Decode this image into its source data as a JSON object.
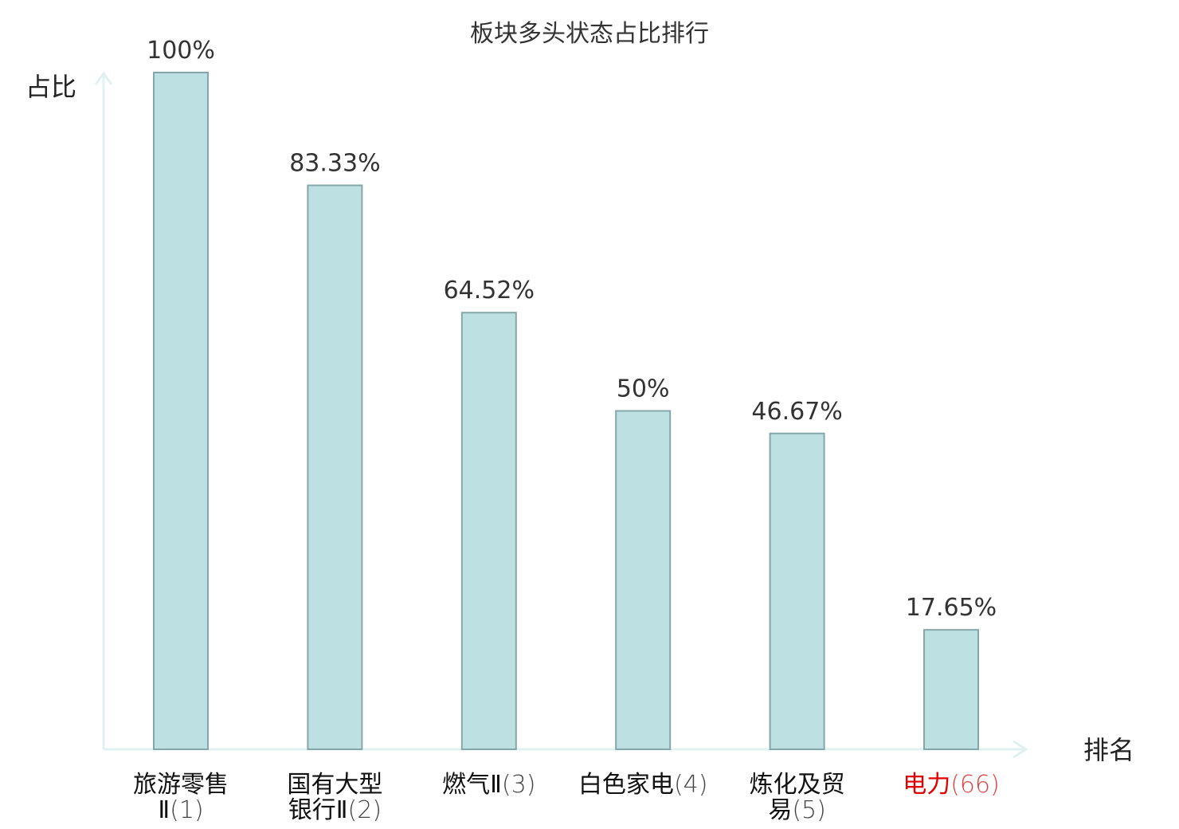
{
  "chart_data": {
    "type": "bar",
    "title": "板块多头状态占比排行",
    "ylabel": "占比",
    "xlabel": "排名",
    "ylim": [
      0,
      100
    ],
    "grid": false,
    "categories": [
      {
        "name": "旅游零售",
        "name_line2": "Ⅱ",
        "rank": "(1)",
        "highlight": false
      },
      {
        "name": "国有大型",
        "name_line2": "银行Ⅱ",
        "rank": "(2)",
        "highlight": false
      },
      {
        "name": "燃气Ⅱ",
        "name_line2": "",
        "rank": "(3)",
        "highlight": false
      },
      {
        "name": "白色家电",
        "name_line2": "",
        "rank": "(4)",
        "highlight": false
      },
      {
        "name": "炼化及贸",
        "name_line2": "易",
        "rank": "(5)",
        "highlight": false
      },
      {
        "name": "电力",
        "name_line2": "",
        "rank": "(66)",
        "highlight": true
      }
    ],
    "values": [
      100,
      83.33,
      64.52,
      50,
      46.67,
      17.65
    ],
    "value_labels": [
      "100%",
      "83.33%",
      "64.52%",
      "50%",
      "46.67%",
      "17.65%"
    ]
  },
  "colors": {
    "bar_fill": "#bde0e3",
    "bar_stroke": "#86a7aa",
    "axis": "#e0f2f0",
    "text": "#333333",
    "highlight_name": "#e00000",
    "highlight_rank": "#e04040"
  }
}
